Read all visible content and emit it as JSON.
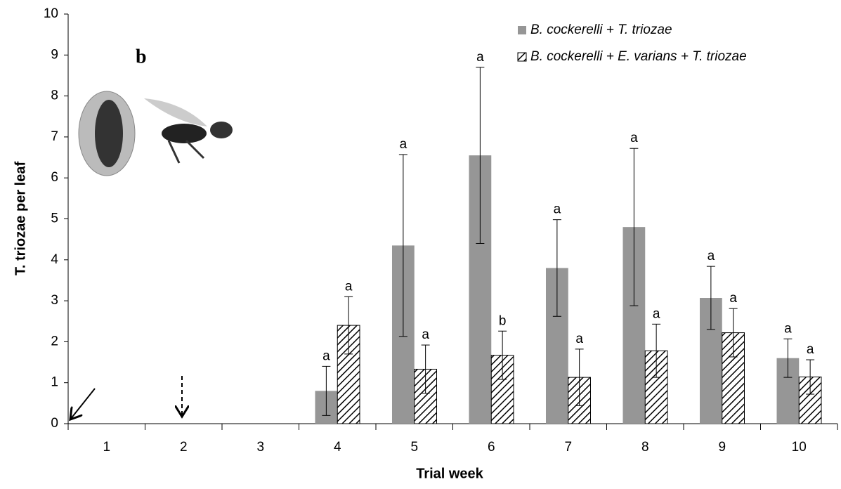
{
  "chart_data": {
    "type": "bar",
    "panel_label": "b",
    "x_label": "Trial week",
    "y_label": "T. triozae per leaf",
    "categories": [
      "1",
      "2",
      "3",
      "4",
      "5",
      "6",
      "7",
      "8",
      "9",
      "10"
    ],
    "series": [
      {
        "name": "B. cockerelli + T. triozae",
        "color": "#969696",
        "hatch": false,
        "values": [
          0,
          0,
          0,
          0.8,
          4.35,
          6.55,
          3.8,
          4.8,
          3.07,
          1.6
        ],
        "errors": [
          null,
          null,
          null,
          0.6,
          2.22,
          2.15,
          1.18,
          1.92,
          0.77,
          0.47
        ],
        "letters": [
          null,
          null,
          null,
          "a",
          "a",
          "a",
          "a",
          "a",
          "a",
          "a"
        ]
      },
      {
        "name": "B. cockerelli + E. varians + T. triozae",
        "color": "#000000",
        "hatch": true,
        "values": [
          0,
          0,
          0,
          2.4,
          1.33,
          1.67,
          1.13,
          1.78,
          2.22,
          1.14
        ],
        "errors": [
          null,
          null,
          null,
          0.7,
          0.59,
          0.59,
          0.69,
          0.65,
          0.59,
          0.42
        ],
        "letters": [
          null,
          null,
          null,
          "a",
          "a",
          "b",
          "a",
          "a",
          "a",
          "a"
        ]
      }
    ],
    "ylim": [
      0,
      10
    ],
    "yticks": [
      0,
      1,
      2,
      3,
      4,
      5,
      6,
      7,
      8,
      9,
      10
    ],
    "legend": "top-right"
  }
}
